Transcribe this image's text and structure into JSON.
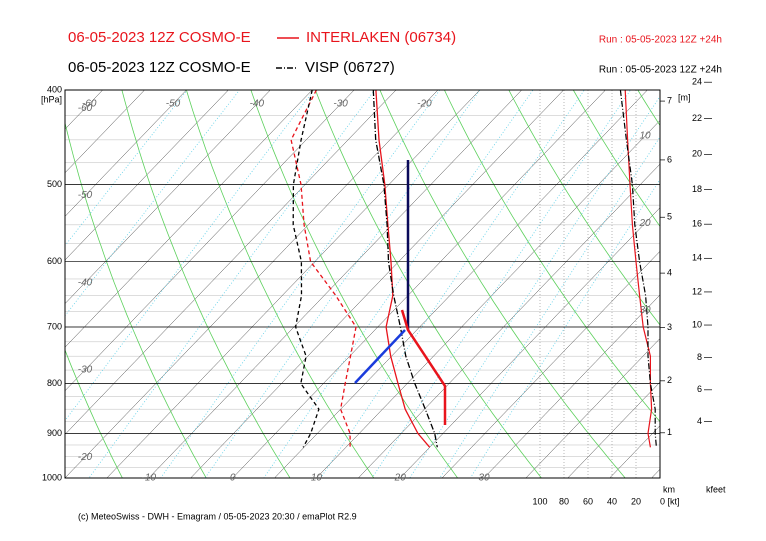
{
  "chart_data": {
    "type": "emagram",
    "series": [
      {
        "model": "06-05-2023 12Z COSMO-E",
        "name": "INTERLAKEN (06734)",
        "run": "Run : 05-05-2023 12Z +24h",
        "color": "#e8141c",
        "style": "solid",
        "temperature": [
          -27.4,
          -21.3,
          -15.5,
          -10.5,
          -5.9,
          -1.8,
          1.0,
          4.9,
          8.9,
          12.7,
          17.0,
          20.0
        ],
        "dewpoint": [
          -34.5,
          -31.8,
          -25.5,
          -20.5,
          -15.5,
          -8.6,
          -2.6,
          0.1,
          2.6,
          5.0,
          8.9,
          10.5
        ],
        "wind_speed": [
          29,
          27,
          25,
          23,
          20,
          17,
          14,
          8,
          8,
          7,
          10,
          8
        ]
      },
      {
        "model": "06-05-2023 12Z COSMO-E",
        "name": "VISP (06727)",
        "run": "Run : 05-05-2023 12Z +24h",
        "color": "#000000",
        "style": "dashdot",
        "temperature": [
          -27.7,
          -21.7,
          -15.6,
          -10.6,
          -6.2,
          -1.7,
          2.7,
          6.7,
          10.9,
          15.1,
          19.0,
          20.9
        ],
        "dewpoint": [
          -35.0,
          -30.6,
          -26.4,
          -21.8,
          -16.6,
          -12.7,
          -9.8,
          -5.2,
          -2.7,
          2.4,
          4.2,
          4.9
        ],
        "wind_speed": [
          33,
          28,
          23,
          21,
          17,
          12,
          10,
          10,
          8,
          4,
          4,
          3
        ]
      }
    ],
    "pressure": [
      400,
      450,
      500,
      550,
      600,
      650,
      700,
      750,
      800,
      850,
      900,
      930
    ],
    "ylim": [
      400,
      1000
    ],
    "yticks": [
      400,
      500,
      600,
      700,
      800,
      900,
      1000
    ],
    "y_unit": "[hPa]",
    "log_scale": true,
    "xlim": [
      -20,
      51
    ],
    "xticks": [
      -10,
      0,
      10,
      20,
      30
    ],
    "isotherm_labels_top": [
      -60,
      -50,
      -40,
      -30,
      -20
    ],
    "isotherm_labels_left": [
      -60,
      -50,
      -40,
      -30,
      -20
    ],
    "isotherm_labels_right": [
      10,
      20,
      30
    ],
    "km_ticks": [
      1,
      2,
      3,
      4,
      5,
      6,
      7
    ],
    "km_unit": "[m]",
    "km_label": "km",
    "kfeet_ticks": [
      4,
      6,
      8,
      10,
      12,
      14,
      16,
      18,
      20,
      22,
      24
    ],
    "kfeet_label": "kfeet",
    "wind_lim": [
      0,
      100
    ],
    "wind_ticks": [
      100,
      80,
      60,
      40,
      20,
      {
        "value": 0,
        "label": "0 [kt]"
      }
    ],
    "footer": "(c) MeteoSwiss - DWH - Emagram / 05-05-2023 20:30 / emaPlot R2.9"
  }
}
